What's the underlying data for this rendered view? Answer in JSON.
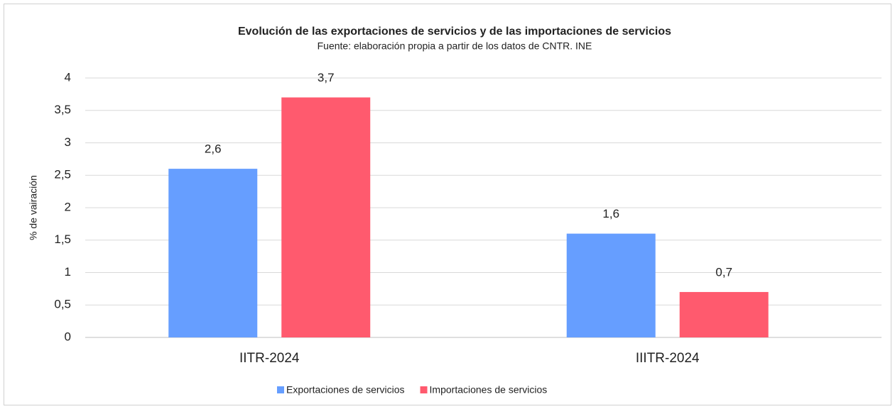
{
  "chart_data": {
    "type": "bar",
    "title": "Evolución de las exportaciones de servicios y de las importaciones de servicios",
    "subtitle": "Fuente: elaboración propia a partir de los datos de CNTR. INE",
    "y_label": "% de vairación",
    "categories": [
      "IITR-2024",
      "IIITR-2024"
    ],
    "series": [
      {
        "name": "Exportaciones de servicios",
        "color": "#669eff",
        "values": [
          2.6,
          1.6
        ],
        "value_labels": [
          "2,6",
          "1,6"
        ]
      },
      {
        "name": "Importaciones de servicios",
        "color": "#ff5a6e",
        "values": [
          3.7,
          0.7
        ],
        "value_labels": [
          "3,7",
          "0,7"
        ]
      }
    ],
    "ylim": [
      0,
      4
    ],
    "yticks": [
      0,
      {
        "value": 0.5,
        "label": "0,5"
      },
      1,
      {
        "value": 1.5,
        "label": "1,5"
      },
      2,
      {
        "value": 2.5,
        "label": "2,5"
      },
      3,
      {
        "value": 3.5,
        "label": "3,5"
      },
      4
    ],
    "grid": true,
    "legend": "bottom"
  }
}
